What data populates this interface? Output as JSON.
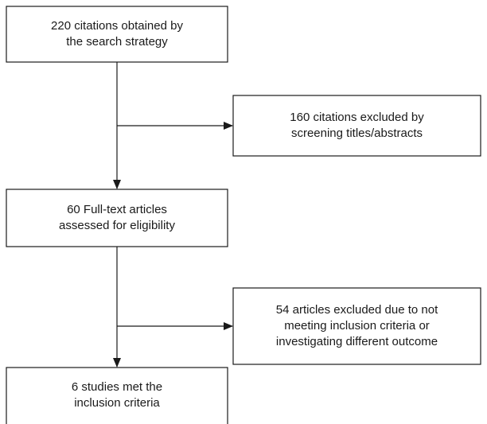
{
  "nodes": [
    {
      "lines": [
        "220 citations obtained by",
        "the search strategy"
      ]
    },
    {
      "lines": [
        "160 citations excluded by",
        "screening titles/abstracts"
      ]
    },
    {
      "lines": [
        "60 Full-text articles",
        "assessed for eligibility"
      ]
    },
    {
      "lines": [
        "54 articles excluded due to not",
        "meeting inclusion criteria or",
        "investigating different outcome"
      ]
    },
    {
      "lines": [
        "6 studies met the",
        "inclusion criteria"
      ]
    }
  ]
}
